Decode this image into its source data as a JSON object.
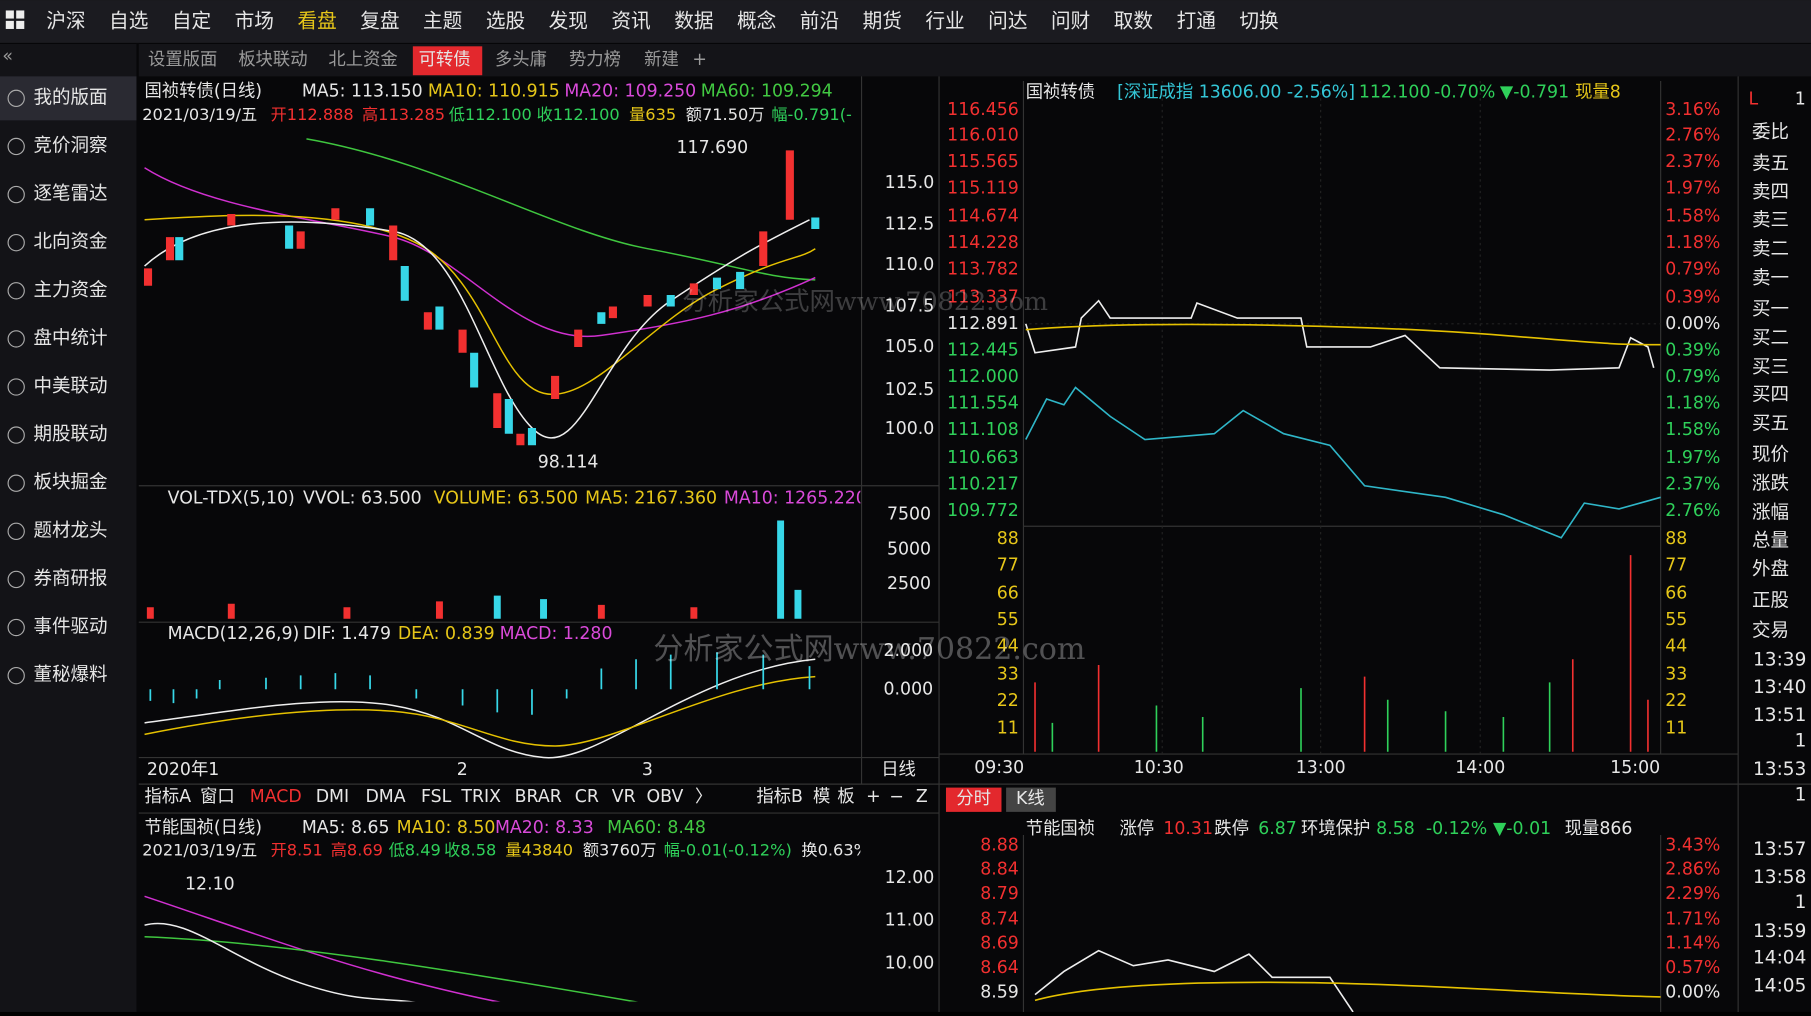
{
  "top_menu": {
    "items": [
      "沪深",
      "自选",
      "自定",
      "市场",
      "看盘",
      "复盘",
      "主题",
      "选股",
      "发现",
      "资讯",
      "数据",
      "概念",
      "前沿",
      "期货",
      "行业",
      "问达",
      "问财",
      "取数",
      "打通",
      "切换"
    ],
    "active": "看盘"
  },
  "sidebar": {
    "collapse": "«",
    "items": [
      "我的版面",
      "竞价洞察",
      "逐笔雷达",
      "北向资金",
      "主力资金",
      "盘中统计",
      "中美联动",
      "期股联动",
      "板块掘金",
      "题材龙头",
      "券商研报",
      "事件驱动",
      "董秘爆料"
    ]
  },
  "tabs": {
    "items": [
      "设置版面",
      "板块联动",
      "北上资金",
      "可转债",
      "多头庸",
      "势力榜",
      "新建"
    ],
    "active": "可转债",
    "add": "+"
  },
  "kline": {
    "title": "国祯转债(日线)",
    "ma": [
      "MA5: 113.150",
      "MA10: 110.915",
      "MA20: 109.250",
      "MA60: 109.294"
    ],
    "info": [
      "2021/03/19/五",
      "开112.888",
      "高113.285",
      "低112.100",
      "收112.100",
      "量635",
      "额71.50万",
      "幅-0.791(-"
    ],
    "yticks": [
      "115.0",
      "112.5",
      "110.0",
      "107.5",
      "105.0",
      "102.5",
      "100.0"
    ],
    "high_label": "117.690",
    "low_label": "98.114",
    "vol": {
      "title": "VOL-TDX(5,10)",
      "items": [
        "VVOL: 63.500",
        "VOLUME: 63.500",
        "MA5: 2167.360",
        "MA10: 1265.220"
      ],
      "yticks": [
        "7500",
        "5000",
        "2500"
      ]
    },
    "macd": {
      "title": "MACD(12,26,9)",
      "items": [
        "DIF: 1.479",
        "DEA: 0.839",
        "MACD: 1.280"
      ],
      "yticks": [
        "2.000",
        "0.000"
      ]
    },
    "xlabels": [
      "2020年1",
      "2",
      "3"
    ],
    "period": "日线"
  },
  "indicator_bar": {
    "left": [
      "指标A",
      "窗口",
      "MACD",
      "DMI",
      "DMA",
      "FSL",
      "TRIX",
      "BRAR",
      "CR",
      "VR",
      "OBV",
      "〉"
    ],
    "active": "MACD",
    "right": [
      "指标B",
      "模",
      "板",
      "+",
      "−",
      "Z"
    ]
  },
  "kline2": {
    "title": "节能国祯(日线)",
    "ma": [
      "MA5: 8.65",
      "MA10: 8.50",
      "MA20: 8.33",
      "MA60: 8.48"
    ],
    "info": [
      "2021/03/19/五",
      "开8.51",
      "高8.69",
      "低8.49",
      "收8.58",
      "量43840",
      "额3760万",
      "幅-0.01(-0.12%)",
      "换0.63%"
    ],
    "yticks": [
      "12.00",
      "11.00",
      "10.00"
    ],
    "high_label": "12.10"
  },
  "intraday": {
    "header": [
      "国祯转债",
      "[深证成指 13606.00 -2.56%]",
      "112.100",
      "-0.70%",
      "▼-0.791",
      "现量8"
    ],
    "price_ticks": [
      "116.456",
      "116.010",
      "115.565",
      "115.119",
      "114.674",
      "114.228",
      "113.782",
      "113.337",
      "112.891",
      "112.445",
      "112.000",
      "111.554",
      "111.108",
      "110.663",
      "110.217",
      "109.772"
    ],
    "pct_ticks": [
      "3.16%",
      "2.76%",
      "2.37%",
      "1.97%",
      "1.58%",
      "1.18%",
      "0.79%",
      "0.39%",
      "0.00%",
      "0.39%",
      "0.79%",
      "1.18%",
      "1.58%",
      "1.97%",
      "2.37%",
      "2.76%"
    ],
    "vol_ticks": [
      "88",
      "77",
      "66",
      "55",
      "44",
      "33",
      "22",
      "11"
    ],
    "times": [
      "09:30",
      "10:30",
      "13:00",
      "14:00",
      "15:00"
    ]
  },
  "intraday2": {
    "tabs": [
      "分时",
      "K线"
    ],
    "header": [
      "节能国祯",
      "涨停",
      "10.31",
      "跌停",
      "6.87",
      "环境保护",
      "8.58",
      "-0.12%",
      "▼-0.01",
      "现量866"
    ],
    "price_ticks": [
      "8.88",
      "8.84",
      "8.79",
      "8.74",
      "8.69",
      "8.64",
      "8.59"
    ],
    "pct_ticks": [
      "3.43%",
      "2.86%",
      "2.29%",
      "1.71%",
      "1.14%",
      "0.57%",
      "0.00%"
    ]
  },
  "quote_panel": {
    "top": [
      "L",
      "1"
    ],
    "labels": [
      "委比",
      "卖五",
      "卖四",
      "卖三",
      "卖二",
      "卖一",
      "买一",
      "买二",
      "买三",
      "买四",
      "买五",
      "现价",
      "涨跌",
      "涨幅",
      "总量",
      "外盘",
      "正股",
      "交易"
    ],
    "times": [
      "13:39",
      "13:40",
      "13:51",
      "1",
      "13:53",
      "1",
      "13:57",
      "13:58",
      "1",
      "13:59",
      "14:04",
      "14:05"
    ]
  },
  "watermark": "分析家公式网www.70822.com"
}
